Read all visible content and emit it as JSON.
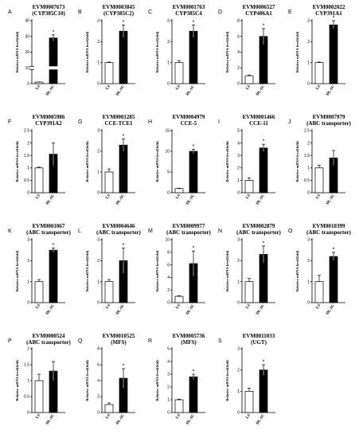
{
  "figure": {
    "ylabel": "Relative mRNA level(fold)",
    "categories": [
      "LS",
      "DL-SC"
    ]
  },
  "chart_data": [
    {
      "type": "bar",
      "letter": "A",
      "title": [
        "EVM0007673",
        "(CYP385C10)"
      ],
      "categories": [
        "LS",
        "DL-SC"
      ],
      "values": [
        1,
        29
      ],
      "errors": [
        0.05,
        2
      ],
      "sig": [
        "",
        "*"
      ],
      "ylim": [
        0,
        40
      ],
      "yticks": [
        0,
        10,
        20,
        30,
        40
      ],
      "ylabel": "Relative mRNA level(fold)",
      "broken_axis": true
    },
    {
      "type": "bar",
      "letter": "B",
      "title": [
        "EVM0003845",
        "(CYP385C2)"
      ],
      "categories": [
        "LS",
        "DL-SC"
      ],
      "values": [
        1,
        2.5
      ],
      "errors": [
        0.03,
        0.3
      ],
      "sig": [
        "",
        "*"
      ],
      "ylim": [
        0,
        3
      ],
      "yticks": [
        0,
        1,
        2,
        3
      ],
      "ylabel": "Relative mRNA level(fold)"
    },
    {
      "type": "bar",
      "letter": "C",
      "title": [
        "EVM0001763",
        "CYP385C4"
      ],
      "categories": [
        "LS",
        "DL-SC"
      ],
      "values": [
        1,
        2.5
      ],
      "errors": [
        0.1,
        0.3
      ],
      "sig": [
        "",
        "*"
      ],
      "ylim": [
        0,
        3
      ],
      "yticks": [
        0,
        1,
        2,
        3
      ],
      "ylabel": "Relative mRNA level(fold)"
    },
    {
      "type": "bar",
      "letter": "D",
      "title": [
        "EVM0006527",
        "CYP406A1"
      ],
      "categories": [
        "LS",
        "DL-SC"
      ],
      "values": [
        1,
        6
      ],
      "errors": [
        0.1,
        1
      ],
      "sig": [
        "",
        "*"
      ],
      "ylim": [
        0,
        8
      ],
      "yticks": [
        0,
        2,
        4,
        6,
        8
      ],
      "ylabel": "Relative mRNA level(fold)"
    },
    {
      "type": "bar",
      "letter": "E",
      "title": [
        "EVM0002022",
        "CYP391A1"
      ],
      "categories": [
        "LS",
        "DL-SC"
      ],
      "values": [
        1,
        2.8
      ],
      "errors": [
        0.03,
        0.2
      ],
      "sig": [
        "",
        "*"
      ],
      "ylim": [
        0,
        3
      ],
      "yticks": [
        0,
        1,
        2,
        3
      ],
      "ylabel": "Relative mRNA level(fold)"
    },
    {
      "type": "bar",
      "letter": "F",
      "title": [
        "EVM0005986",
        "CYP391A2"
      ],
      "categories": [
        "LS",
        "DL-SC"
      ],
      "values": [
        1,
        1.55
      ],
      "errors": [
        0.03,
        0.45
      ],
      "sig": [
        "",
        ""
      ],
      "ylim": [
        0,
        2.5
      ],
      "yticks": [
        0,
        0.5,
        1,
        1.5,
        2,
        2.5
      ],
      "ylabel": "Relative mRNA level(fold)"
    },
    {
      "type": "bar",
      "letter": "G",
      "title": [
        "EVM0001285",
        "CCE-TCE1"
      ],
      "categories": [
        "LS",
        "DL-SC"
      ],
      "values": [
        1,
        2.3
      ],
      "errors": [
        0.15,
        0.3
      ],
      "sig": [
        "",
        "*"
      ],
      "ylim": [
        0,
        3
      ],
      "yticks": [
        0,
        1,
        2,
        3
      ],
      "ylabel": "Relative mRNA level(fold)"
    },
    {
      "type": "bar",
      "letter": "H",
      "title": [
        "EVM0004979",
        "CCE-5"
      ],
      "categories": [
        "LS",
        "DL-SC"
      ],
      "values": [
        1,
        10
      ],
      "errors": [
        0.1,
        0.5
      ],
      "sig": [
        "",
        "*"
      ],
      "ylim": [
        0,
        15
      ],
      "yticks": [
        0,
        5,
        10,
        15
      ],
      "ylabel": "Relative mRNA level(fold)"
    },
    {
      "type": "bar",
      "letter": "I",
      "title": [
        "EVM0001466",
        "CCE-11"
      ],
      "categories": [
        "LS",
        "DL-SC"
      ],
      "values": [
        1,
        3.6
      ],
      "errors": [
        0.2,
        0.3
      ],
      "sig": [
        "",
        "*"
      ],
      "ylim": [
        0,
        5
      ],
      "yticks": [
        0,
        1,
        2,
        3,
        4,
        5
      ],
      "ylabel": "Relative mRNA level(fold)"
    },
    {
      "type": "bar",
      "letter": "J",
      "title": [
        "EVM0007979",
        "(ABC transporter)"
      ],
      "categories": [
        "LS",
        "DL-SC"
      ],
      "values": [
        1,
        1.4
      ],
      "errors": [
        0.1,
        0.3
      ],
      "sig": [
        "",
        ""
      ],
      "ylim": [
        0,
        2.5
      ],
      "yticks": [
        0,
        0.5,
        1,
        1.5,
        2,
        2.5
      ],
      "ylabel": "Relative mRNA level(fold)"
    },
    {
      "type": "bar",
      "letter": "K",
      "title": [
        "EVM0001067",
        "(ABC transporter)"
      ],
      "categories": [
        "LS",
        "DL-SC"
      ],
      "values": [
        1,
        2.5
      ],
      "errors": [
        0.1,
        0.1
      ],
      "sig": [
        "",
        "*"
      ],
      "ylim": [
        0,
        3
      ],
      "yticks": [
        0,
        1,
        2,
        3
      ],
      "ylabel": "Relative mRNA level(fold)"
    },
    {
      "type": "bar",
      "letter": "L",
      "title": [
        "EVM0004646",
        "(ABC transporter)"
      ],
      "categories": [
        "LS",
        "DL-SC"
      ],
      "values": [
        1,
        2
      ],
      "errors": [
        0.1,
        0.6
      ],
      "sig": [
        "",
        "*"
      ],
      "ylim": [
        0,
        3
      ],
      "yticks": [
        0,
        1,
        2,
        3
      ],
      "ylabel": "Relative mRNA level(fold)"
    },
    {
      "type": "bar",
      "letter": "M",
      "title": [
        "EVM0009977",
        "(ABC transporter)"
      ],
      "categories": [
        "LS",
        "DL-SC"
      ],
      "values": [
        1,
        6.2
      ],
      "errors": [
        0.1,
        2
      ],
      "sig": [
        "",
        "*"
      ],
      "ylim": [
        0,
        10
      ],
      "yticks": [
        0,
        2,
        4,
        6,
        8,
        10
      ],
      "ylabel": "Relative mRNA level(fold)"
    },
    {
      "type": "bar",
      "letter": "N",
      "title": [
        "EVM0002879",
        "(ABC transporter)"
      ],
      "categories": [
        "LS",
        "DL-SC"
      ],
      "values": [
        1,
        2.3
      ],
      "errors": [
        0.15,
        0.4
      ],
      "sig": [
        "",
        "*"
      ],
      "ylim": [
        0,
        3
      ],
      "yticks": [
        0,
        1,
        2,
        3
      ],
      "ylabel": "Relative mRNA level(fold)"
    },
    {
      "type": "bar",
      "letter": "O",
      "title": [
        "EVM0010399",
        "(ABC transporter)"
      ],
      "categories": [
        "LS",
        "DL-SC"
      ],
      "values": [
        1,
        2.2
      ],
      "errors": [
        0.3,
        0.2
      ],
      "sig": [
        "",
        "*"
      ],
      "ylim": [
        0,
        3
      ],
      "yticks": [
        0,
        1,
        2,
        3
      ],
      "ylabel": "Relative mRNA level(fold)"
    },
    {
      "type": "bar",
      "letter": "P",
      "title": [
        "EVM0000524",
        "(ABC transporter)"
      ],
      "categories": [
        "LS",
        "DL-SC"
      ],
      "values": [
        1,
        1.3
      ],
      "errors": [
        0.2,
        0.3
      ],
      "sig": [
        "",
        ""
      ],
      "ylim": [
        0,
        2
      ],
      "yticks": [
        0,
        0.5,
        1,
        1.5,
        2
      ],
      "ylabel": "Relative mRNA level(fold)"
    },
    {
      "type": "bar",
      "letter": "Q",
      "title": [
        "EVM0010525",
        "(MFS)"
      ],
      "categories": [
        "LS",
        "DL-SC"
      ],
      "values": [
        1,
        4.3
      ],
      "errors": [
        0.2,
        1.2
      ],
      "sig": [
        "",
        "*"
      ],
      "ylim": [
        0,
        8
      ],
      "yticks": [
        0,
        2,
        4,
        6,
        8
      ],
      "ylabel": "Relative mRNA level(fold)"
    },
    {
      "type": "bar",
      "letter": "R",
      "title": [
        "EVM0005736",
        "(MFS)"
      ],
      "categories": [
        "LS",
        "DL-SC"
      ],
      "values": [
        1,
        2.8
      ],
      "errors": [
        0.05,
        0.2
      ],
      "sig": [
        "",
        "*"
      ],
      "ylim": [
        0,
        5
      ],
      "yticks": [
        0,
        1,
        2,
        3,
        4,
        5
      ],
      "ylabel": "Relative mRNA level(fold)"
    },
    {
      "type": "bar",
      "letter": "S",
      "title": [
        "EVM0011033",
        "(UGT)"
      ],
      "categories": [
        "LS",
        "DL-SC"
      ],
      "values": [
        1,
        2
      ],
      "errors": [
        0.15,
        0.25
      ],
      "sig": [
        "",
        "*"
      ],
      "ylim": [
        0,
        3
      ],
      "yticks": [
        0,
        1,
        2,
        3
      ],
      "ylabel": "Relative mRNA level(fold)"
    }
  ],
  "colors": {
    "LS": "#ffffff",
    "DL-SC": "#000000",
    "axis": "#000000"
  }
}
